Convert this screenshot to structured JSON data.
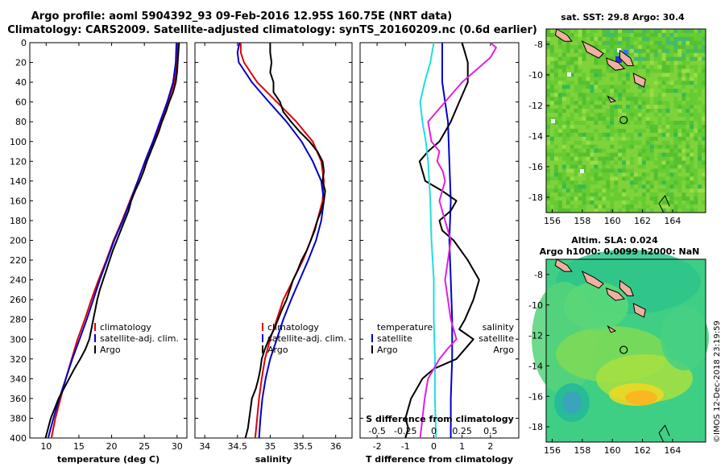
{
  "title_line1": "Argo profile: aoml 5904392_93 09-Feb-2016 12.95S 160.75E (NRT data)",
  "title_line2": "Climatology: CARS2009. Satellite-adjusted climatology: synTS_20160209.nc (0.6d earlier)",
  "side_label": "©IMOS 12-Dec-2018 23:19:59",
  "colors": {
    "climatology": "#e00000",
    "satellite": "#0000cc",
    "argo": "#000000",
    "s_diff": "#dd22dd",
    "t_sat_diff": "#22dddd"
  },
  "chart_data": [
    {
      "type": "line",
      "name": "temperature",
      "xlabel": "temperature (deg C)",
      "ylabel": "",
      "xlim": [
        7.5,
        31.5
      ],
      "ylim": [
        0,
        400
      ],
      "x_ticks": [
        10,
        15,
        20,
        25,
        30
      ],
      "x_tick_labels": [
        "10",
        "15",
        "20",
        "25",
        "30"
      ],
      "y_ticks": [
        0,
        20,
        40,
        60,
        80,
        100,
        120,
        140,
        160,
        180,
        200,
        220,
        240,
        260,
        280,
        300,
        320,
        340,
        360,
        380,
        400
      ],
      "y_tick_labels": [
        "0",
        "20",
        "40",
        "60",
        "80",
        "100",
        "120",
        "140",
        "160",
        "180",
        "200",
        "220",
        "240",
        "260",
        "280",
        "300",
        "320",
        "340",
        "360",
        "380",
        "400"
      ],
      "legend": [
        "climatology",
        "satellite-adj. clim.",
        "Argo"
      ],
      "series": [
        {
          "name": "climatology",
          "color": "#e00000",
          "depth": [
            0,
            20,
            40,
            60,
            80,
            100,
            120,
            140,
            160,
            180,
            200,
            220,
            240,
            260,
            280,
            300,
            320,
            340,
            360,
            380,
            400
          ],
          "values": [
            30.1,
            29.9,
            29.6,
            28.6,
            27.5,
            26.4,
            25.2,
            24.0,
            22.8,
            21.6,
            20.3,
            19.2,
            18.0,
            16.9,
            15.9,
            14.8,
            13.9,
            13.0,
            12.2,
            11.4,
            10.8
          ]
        },
        {
          "name": "satellite-adj. clim.",
          "color": "#0000cc",
          "depth": [
            0,
            20,
            40,
            60,
            80,
            100,
            120,
            140,
            160,
            180,
            200,
            220,
            240,
            260,
            280,
            300,
            320,
            340,
            360,
            380,
            400
          ],
          "values": [
            29.9,
            29.8,
            29.4,
            28.5,
            27.4,
            26.3,
            25.1,
            24.0,
            22.9,
            21.7,
            20.4,
            19.3,
            18.2,
            17.2,
            16.2,
            15.1,
            14.0,
            13.0,
            12.0,
            11.1,
            10.3
          ]
        },
        {
          "name": "Argo",
          "color": "#000000",
          "depth": [
            0,
            10,
            20,
            30,
            40,
            50,
            60,
            70,
            80,
            90,
            100,
            110,
            120,
            130,
            140,
            150,
            160,
            170,
            180,
            190,
            200,
            210,
            220,
            230,
            240,
            250,
            260,
            270,
            280,
            290,
            300,
            310,
            320,
            330,
            340,
            350,
            360,
            370,
            380,
            390,
            400
          ],
          "values": [
            30.3,
            30.2,
            30.1,
            30.0,
            29.8,
            29.4,
            28.8,
            28.3,
            27.7,
            27.2,
            26.6,
            26.0,
            25.4,
            24.9,
            24.3,
            23.6,
            23.0,
            22.6,
            22.0,
            21.4,
            20.8,
            20.2,
            19.7,
            19.2,
            18.7,
            18.2,
            17.8,
            17.5,
            17.2,
            16.9,
            16.6,
            16.0,
            15.2,
            14.3,
            13.5,
            12.7,
            11.9,
            11.3,
            10.7,
            10.3,
            9.9
          ]
        }
      ]
    },
    {
      "type": "line",
      "name": "salinity",
      "xlabel": "salinity",
      "ylabel": "",
      "xlim": [
        33.85,
        36.25
      ],
      "ylim": [
        0,
        400
      ],
      "x_ticks": [
        34,
        34.5,
        35,
        35.5,
        36
      ],
      "x_tick_labels": [
        "34",
        "34.5",
        "35",
        "35.5",
        "36"
      ],
      "legend": [
        "climatology",
        "satellite-adj. clim.",
        "Argo"
      ],
      "series": [
        {
          "name": "climatology",
          "color": "#e00000",
          "depth": [
            0,
            10,
            20,
            40,
            60,
            80,
            100,
            120,
            140,
            160,
            180,
            200,
            220,
            240,
            260,
            280,
            300,
            320,
            340,
            360,
            380,
            400
          ],
          "values": [
            34.55,
            34.55,
            34.6,
            34.8,
            35.1,
            35.4,
            35.65,
            35.78,
            35.82,
            35.8,
            35.72,
            35.62,
            35.5,
            35.35,
            35.2,
            35.1,
            35.0,
            34.92,
            34.87,
            34.83,
            34.8,
            34.77
          ]
        },
        {
          "name": "satellite-adj. clim.",
          "color": "#0000cc",
          "depth": [
            0,
            10,
            20,
            40,
            60,
            80,
            100,
            120,
            140,
            160,
            180,
            200,
            220,
            240,
            260,
            280,
            300,
            320,
            340,
            360,
            380,
            400
          ],
          "values": [
            34.53,
            34.5,
            34.52,
            34.72,
            34.98,
            35.25,
            35.48,
            35.65,
            35.78,
            35.82,
            35.78,
            35.7,
            35.58,
            35.45,
            35.32,
            35.2,
            35.1,
            35.0,
            34.93,
            34.88,
            34.85,
            34.83
          ]
        },
        {
          "name": "Argo",
          "color": "#000000",
          "depth": [
            0,
            10,
            20,
            30,
            40,
            50,
            60,
            70,
            80,
            90,
            100,
            110,
            120,
            130,
            140,
            150,
            160,
            170,
            180,
            190,
            200,
            210,
            220,
            230,
            240,
            250,
            260,
            270,
            280,
            290,
            300,
            310,
            320,
            330,
            340,
            350,
            360,
            370,
            380,
            390,
            400
          ],
          "values": [
            35.0,
            35.0,
            35.02,
            35.0,
            35.05,
            35.05,
            35.15,
            35.2,
            35.32,
            35.45,
            35.6,
            35.72,
            35.8,
            35.82,
            35.8,
            35.84,
            35.82,
            35.78,
            35.72,
            35.68,
            35.62,
            35.56,
            35.48,
            35.42,
            35.35,
            35.3,
            35.25,
            35.18,
            35.12,
            35.06,
            34.98,
            34.92,
            34.87,
            34.85,
            34.82,
            34.78,
            34.72,
            34.7,
            34.68,
            34.66,
            34.62
          ]
        }
      ]
    },
    {
      "type": "line",
      "name": "differences",
      "xlabel": "T difference from climatology",
      "top_xlabel": "S difference from climatology",
      "xlim": [
        -2.6,
        3.0
      ],
      "ylim": [
        0,
        400
      ],
      "x_ticks": [
        -2,
        -1,
        0,
        1,
        2
      ],
      "x_tick_labels": [
        "-2",
        "-1",
        "0",
        "1",
        "2"
      ],
      "s_xlim": [
        -0.65,
        0.75
      ],
      "s_ticks": [
        -0.5,
        -0.25,
        0,
        0.25,
        0.5
      ],
      "s_tick_labels": [
        "-0.5",
        "-0.25",
        "0",
        "0.25",
        "0.5"
      ],
      "legend_left": [
        "temperature",
        "satellite",
        "Argo"
      ],
      "legend_right": [
        "salinity",
        "satellite",
        "Argo"
      ],
      "series": [
        {
          "name": "T satellite",
          "axis": "T",
          "color": "#0000cc",
          "depth": [
            0,
            40,
            80,
            120,
            160,
            200,
            240,
            280,
            320,
            360,
            400
          ],
          "values": [
            0.3,
            0.3,
            0.5,
            0.55,
            0.6,
            0.55,
            0.6,
            0.65,
            0.65,
            0.6,
            0.6
          ]
        },
        {
          "name": "T Argo",
          "axis": "T",
          "color": "#000000",
          "depth": [
            0,
            10,
            20,
            40,
            60,
            80,
            100,
            110,
            120,
            140,
            150,
            160,
            170,
            180,
            190,
            200,
            220,
            240,
            260,
            280,
            290,
            300,
            320,
            330,
            340,
            350,
            360,
            370,
            380,
            390,
            400
          ],
          "values": [
            1.0,
            1.1,
            1.2,
            1.2,
            0.9,
            0.6,
            0.2,
            -0.2,
            -0.5,
            -0.3,
            0.3,
            0.8,
            0.6,
            0.2,
            0.3,
            0.7,
            1.2,
            1.6,
            1.4,
            1.1,
            0.9,
            1.4,
            0.8,
            0.0,
            -0.4,
            -0.6,
            -0.8,
            -0.9,
            -1.0,
            -0.9,
            -1.0
          ]
        },
        {
          "name": "S satellite",
          "axis": "S",
          "color": "#22dddd",
          "depth": [
            0,
            20,
            40,
            60,
            80,
            100,
            120,
            160,
            200,
            240,
            280,
            320,
            360,
            400
          ],
          "values": [
            0.0,
            -0.03,
            -0.08,
            -0.12,
            -0.1,
            -0.07,
            -0.05,
            -0.03,
            -0.02,
            0.0,
            0.0,
            0.01,
            0.01,
            0.02
          ]
        },
        {
          "name": "S Argo",
          "axis": "S",
          "color": "#dd22dd",
          "depth": [
            0,
            5,
            15,
            25,
            40,
            60,
            80,
            100,
            110,
            120,
            130,
            140,
            160,
            180,
            200,
            240,
            280,
            300,
            310,
            320,
            330,
            340,
            360,
            380,
            400
          ],
          "values": [
            0.5,
            0.55,
            0.5,
            0.4,
            0.25,
            0.1,
            -0.05,
            -0.02,
            0.05,
            0.03,
            0.08,
            0.1,
            0.05,
            0.1,
            0.15,
            0.1,
            0.15,
            0.2,
            0.12,
            0.05,
            0.0,
            -0.05,
            -0.08,
            -0.1,
            -0.12
          ]
        }
      ]
    },
    {
      "type": "heatmap",
      "name": "sst_map",
      "title": "sat. SST: 29.8 Argo: 30.4",
      "xlim": [
        155.6,
        166.2
      ],
      "ylim": [
        -19.0,
        -7.0
      ],
      "x_ticks": [
        156,
        158,
        160,
        162,
        164
      ],
      "x_tick_labels": [
        "156",
        "158",
        "160",
        "162",
        "164"
      ],
      "y_ticks": [
        -8,
        -10,
        -12,
        -14,
        -16,
        -18
      ],
      "y_tick_labels": [
        "-8",
        "-10",
        "-12",
        "-14",
        "-16",
        "-18"
      ],
      "marker": {
        "lon": 160.75,
        "lat": -12.95
      }
    },
    {
      "type": "heatmap",
      "name": "sla_map",
      "title": "Altim. SLA: 0.024",
      "subtitle": "Argo h1000: 0.0099 h2000: NaN",
      "xlim": [
        155.6,
        166.2
      ],
      "ylim": [
        -19.0,
        -7.0
      ],
      "x_ticks": [
        156,
        158,
        160,
        162,
        164
      ],
      "x_tick_labels": [
        "156",
        "158",
        "160",
        "162",
        "164"
      ],
      "y_ticks": [
        -8,
        -10,
        -12,
        -14,
        -16,
        -18
      ],
      "y_tick_labels": [
        "-8",
        "-10",
        "-12",
        "-14",
        "-16",
        "-18"
      ],
      "marker": {
        "lon": 160.75,
        "lat": -12.95
      }
    }
  ]
}
